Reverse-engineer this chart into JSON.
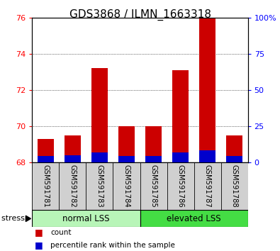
{
  "title": "GDS3868 / ILMN_1663318",
  "categories": [
    "GSM591781",
    "GSM591782",
    "GSM591783",
    "GSM591784",
    "GSM591785",
    "GSM591786",
    "GSM591787",
    "GSM591788"
  ],
  "red_values": [
    69.3,
    69.5,
    73.2,
    70.0,
    70.0,
    73.1,
    76.0,
    69.5
  ],
  "blue_values": [
    68.35,
    68.4,
    68.55,
    68.35,
    68.35,
    68.55,
    68.65,
    68.35
  ],
  "bar_bottom": 68.0,
  "ylim_left": [
    68,
    76
  ],
  "ylim_right": [
    0,
    100
  ],
  "yticks_left": [
    68,
    70,
    72,
    74,
    76
  ],
  "yticks_right": [
    0,
    25,
    50,
    75,
    100
  ],
  "ytick_labels_right": [
    "0",
    "25",
    "50",
    "75",
    "100%"
  ],
  "groups": [
    {
      "label": "normal LSS",
      "start": 0,
      "end": 4,
      "color": "#b8f5b8"
    },
    {
      "label": "elevated LSS",
      "start": 4,
      "end": 8,
      "color": "#44dd44"
    }
  ],
  "stress_label": "stress",
  "legend_red": "count",
  "legend_blue": "percentile rank within the sample",
  "bar_width": 0.6,
  "red_color": "#cc0000",
  "blue_color": "#0000cc",
  "grid_color": "#000000",
  "xlabel_area_color": "#d0d0d0",
  "title_fontsize": 11,
  "tick_fontsize": 8,
  "label_fontsize": 8
}
